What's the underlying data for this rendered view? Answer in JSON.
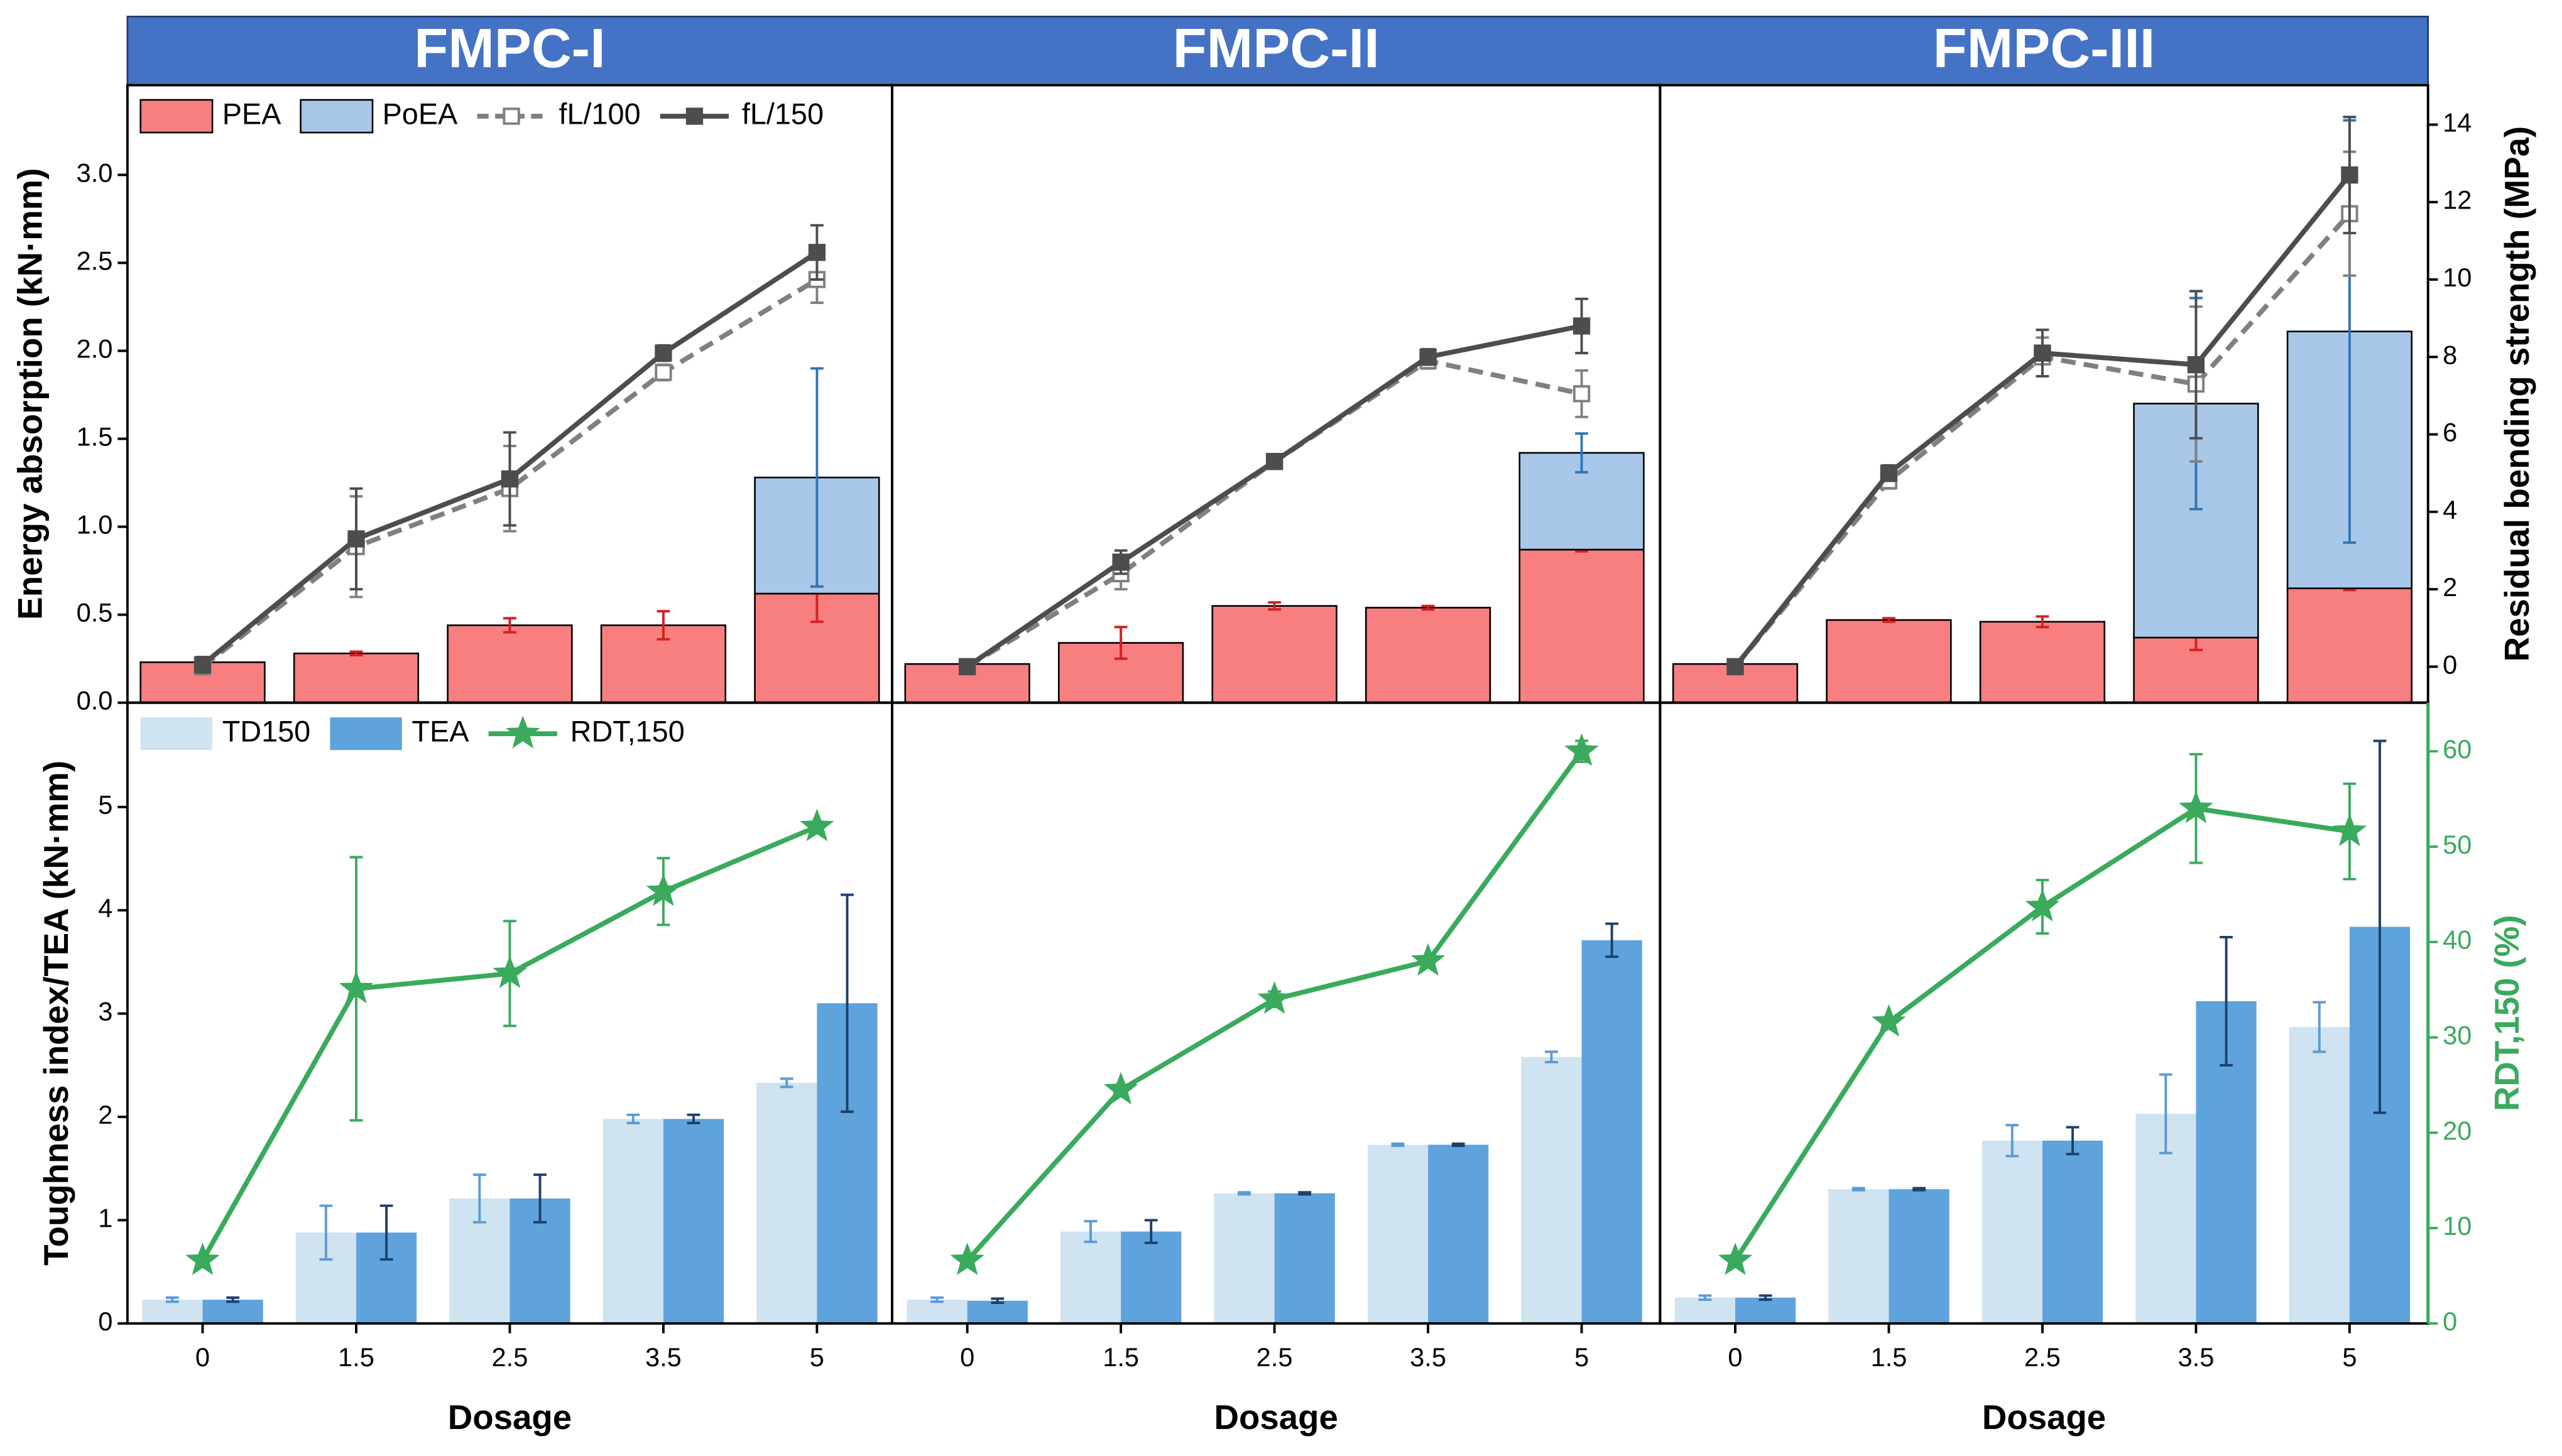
{
  "chart_data": [
    {
      "type": "bar-line",
      "title": "FMPC-I",
      "legend": "upper left",
      "stacked": true,
      "ylabel": "Energy absorption (kN·mm)",
      "ylim": [
        0,
        3.51
      ],
      "y2lim": [
        -0.93,
        15.02
      ],
      "yticks": [
        {
          "value": 0,
          "label": "0.0"
        },
        {
          "value": 0.5,
          "label": "0.5"
        },
        {
          "value": 1,
          "label": "1.0"
        },
        {
          "value": 1.5,
          "label": "1.5"
        },
        {
          "value": 2,
          "label": "2.0"
        },
        {
          "value": 2.5,
          "label": "2.5"
        },
        {
          "value": 3,
          "label": "3.0"
        }
      ],
      "series": [
        {
          "name": "PEA",
          "color": "#f77f7f",
          "error_color": "#d62020",
          "values": [
            0.23,
            0.28,
            0.44,
            0.44,
            0.62
          ],
          "errors": [
            0.01,
            0.01,
            0.04,
            0.08,
            0.16
          ]
        },
        {
          "name": "PoEA",
          "color": "#a9c7e8",
          "error_color": "#2e75b6",
          "values": [
            null,
            null,
            null,
            null,
            0.66
          ],
          "errors": [
            null,
            null,
            null,
            null,
            0.62
          ]
        },
        {
          "name": "fL/100",
          "type": "line",
          "axis": "y2",
          "color": "#808080",
          "linestyle": "dashed",
          "marker": "square-open",
          "error_color": "#808080",
          "values": [
            0.0,
            3.1,
            4.6,
            7.6,
            10.0
          ],
          "errors": [
            0.2,
            1.3,
            1.1,
            0.2,
            0.6
          ]
        },
        {
          "name": "fL/150",
          "type": "line",
          "axis": "y2",
          "color": "#4d4d4d",
          "linestyle": "solid",
          "marker": "square",
          "error_color": "#4d4d4d",
          "values": [
            0.05,
            3.3,
            4.85,
            8.1,
            10.7
          ],
          "errors": [
            0.2,
            1.3,
            1.2,
            0.2,
            0.7
          ]
        }
      ]
    },
    {
      "type": "bar-line",
      "title": "FMPC-II",
      "stacked": true,
      "ylim": [
        0,
        3.51
      ],
      "y2lim": [
        -0.93,
        15.02
      ],
      "series": [
        {
          "color": "#f77f7f",
          "error_color": "#d62020",
          "values": [
            0.22,
            0.34,
            0.55,
            0.54,
            0.87
          ],
          "errors": [
            0.01,
            0.09,
            0.02,
            0.01,
            0.01
          ]
        },
        {
          "color": "#a9c7e8",
          "error_color": "#2e75b6",
          "values": [
            null,
            null,
            null,
            null,
            0.55
          ],
          "errors": [
            null,
            null,
            null,
            null,
            0.11
          ]
        },
        {
          "type": "line",
          "axis": "y2",
          "color": "#808080",
          "linestyle": "dashed",
          "marker": "square-open",
          "error_color": "#808080",
          "values": [
            0.0,
            2.4,
            5.3,
            7.9,
            7.05
          ],
          "errors": [
            0.1,
            0.4,
            0.15,
            0.2,
            0.6
          ]
        },
        {
          "type": "line",
          "axis": "y2",
          "color": "#4d4d4d",
          "linestyle": "solid",
          "marker": "square",
          "error_color": "#4d4d4d",
          "values": [
            0.0,
            2.7,
            5.3,
            8.0,
            8.8
          ],
          "errors": [
            0.1,
            0.3,
            0.15,
            0.2,
            0.7
          ]
        }
      ]
    },
    {
      "type": "bar-line",
      "title": "FMPC-III",
      "stacked": true,
      "ylim": [
        0,
        3.51
      ],
      "y2lim": [
        -0.93,
        15.02
      ],
      "y2label": "Residual bending strength (MPa)",
      "y2ticks": [
        0,
        2,
        4,
        6,
        8,
        10,
        12,
        14
      ],
      "series": [
        {
          "color": "#f77f7f",
          "error_color": "#d62020",
          "values": [
            0.22,
            0.47,
            0.46,
            0.37,
            0.65
          ],
          "errors": [
            0.01,
            0.01,
            0.03,
            0.07,
            0.01
          ]
        },
        {
          "color": "#a9c7e8",
          "error_color": "#2e75b6",
          "values": [
            null,
            null,
            null,
            1.33,
            1.46
          ],
          "errors": [
            null,
            null,
            null,
            0.6,
            1.2
          ]
        },
        {
          "type": "line",
          "axis": "y2",
          "color": "#808080",
          "linestyle": "dashed",
          "marker": "square-open",
          "error_color": "#808080",
          "values": [
            0.0,
            4.8,
            8.0,
            7.3,
            11.7
          ],
          "errors": [
            0.1,
            0.2,
            0.5,
            2.0,
            1.6
          ]
        },
        {
          "type": "line",
          "axis": "y2",
          "color": "#4d4d4d",
          "linestyle": "solid",
          "marker": "square",
          "error_color": "#4d4d4d",
          "values": [
            0.0,
            5.0,
            8.1,
            7.8,
            12.7
          ],
          "errors": [
            0.1,
            0.2,
            0.6,
            1.9,
            1.5
          ]
        }
      ]
    },
    {
      "type": "bar-line",
      "legend": "upper left",
      "stacked": false,
      "ylabel": "Toughness index/TEA (kN·mm)",
      "xlabel": "Dosage",
      "categories": [
        "0",
        "1.5",
        "2.5",
        "3.5",
        "5"
      ],
      "ylim": [
        0,
        6.01
      ],
      "y2lim": [
        0,
        65.1
      ],
      "yticks": [
        0,
        1,
        2,
        3,
        4,
        5
      ],
      "series": [
        {
          "name": "TD150",
          "color": "#cfe3f1",
          "error_color": "#5b9bd5",
          "values": [
            0.23,
            0.88,
            1.21,
            1.98,
            2.33
          ],
          "errors": [
            0.02,
            0.26,
            0.23,
            0.04,
            0.04
          ]
        },
        {
          "name": "TEA",
          "color": "#5ea3dc",
          "error_color": "#1f3f6b",
          "values": [
            0.23,
            0.88,
            1.21,
            1.98,
            3.1
          ],
          "errors": [
            0.02,
            0.26,
            0.23,
            0.04,
            1.05
          ]
        },
        {
          "name": "RDT,150",
          "type": "line",
          "axis": "y2",
          "color": "#3aaa5c",
          "linestyle": "solid",
          "marker": "star",
          "error_color": "#3aaa5c",
          "values": [
            6.6,
            35.1,
            36.7,
            45.3,
            52.1
          ],
          "errors": [
            0,
            13.8,
            5.5,
            3.5,
            0.5
          ]
        }
      ]
    },
    {
      "type": "bar-line",
      "stacked": false,
      "xlabel": "Dosage",
      "categories": [
        "0",
        "1.5",
        "2.5",
        "3.5",
        "5"
      ],
      "ylim": [
        0,
        6.01
      ],
      "y2lim": [
        0,
        65.1
      ],
      "series": [
        {
          "color": "#cfe3f1",
          "error_color": "#5b9bd5",
          "values": [
            0.23,
            0.89,
            1.26,
            1.73,
            2.58
          ],
          "errors": [
            0.02,
            0.1,
            0.01,
            0.01,
            0.05
          ]
        },
        {
          "color": "#5ea3dc",
          "error_color": "#1f3f6b",
          "values": [
            0.22,
            0.89,
            1.26,
            1.73,
            3.71
          ],
          "errors": [
            0.02,
            0.11,
            0.01,
            0.01,
            0.16
          ]
        },
        {
          "type": "line",
          "axis": "y2",
          "color": "#3aaa5c",
          "linestyle": "solid",
          "marker": "star",
          "error_color": "#3aaa5c",
          "values": [
            6.6,
            24.5,
            34.0,
            38.0,
            60.0
          ],
          "errors": [
            0,
            0,
            0.8,
            0.5,
            1.1
          ]
        }
      ]
    },
    {
      "type": "bar-line",
      "stacked": false,
      "xlabel": "Dosage",
      "categories": [
        "0",
        "1.5",
        "2.5",
        "3.5",
        "5"
      ],
      "ylim": [
        0,
        6.01
      ],
      "y2lim": [
        0,
        65.1
      ],
      "y2label": "RDT,150 (%)",
      "y2color": "#3aaa5c",
      "y2ticks": [
        0,
        10,
        20,
        30,
        40,
        50,
        60
      ],
      "series": [
        {
          "color": "#cfe3f1",
          "error_color": "#5b9bd5",
          "values": [
            0.25,
            1.3,
            1.77,
            2.03,
            2.87
          ],
          "errors": [
            0.02,
            0.01,
            0.15,
            0.38,
            0.24
          ]
        },
        {
          "color": "#5ea3dc",
          "error_color": "#1f3f6b",
          "values": [
            0.25,
            1.3,
            1.77,
            3.12,
            3.84
          ],
          "errors": [
            0.02,
            0.01,
            0.13,
            0.62,
            1.8
          ]
        },
        {
          "type": "line",
          "axis": "y2",
          "color": "#3aaa5c",
          "linestyle": "solid",
          "marker": "star",
          "error_color": "#3aaa5c",
          "values": [
            6.6,
            31.6,
            43.7,
            54.0,
            51.6
          ],
          "errors": [
            0,
            0,
            2.8,
            5.7,
            5.0
          ]
        }
      ]
    }
  ]
}
